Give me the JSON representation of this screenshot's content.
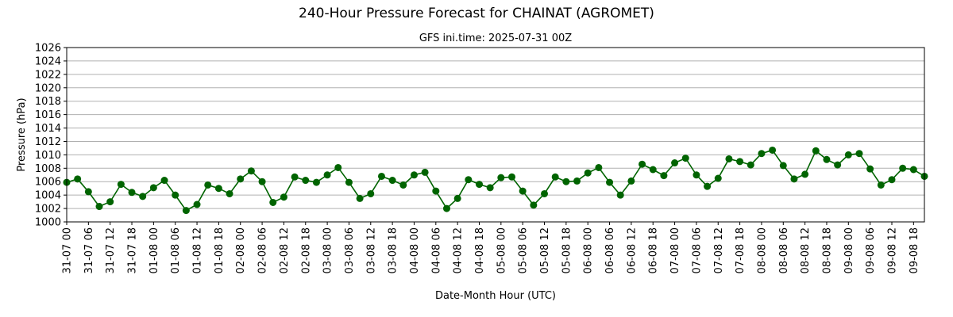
{
  "chart_data": {
    "type": "line",
    "title": "240-Hour Pressure Forecast for CHAINAT (AGROMET)",
    "subtitle": "GFS ini.time: 2025-07-31 00Z",
    "xlabel": "Date-Month Hour (UTC)",
    "ylabel": "Pressure (hPa)",
    "ylim": [
      1000,
      1026
    ],
    "yticks": [
      1000,
      1002,
      1004,
      1006,
      1008,
      1010,
      1012,
      1014,
      1016,
      1018,
      1020,
      1022,
      1024,
      1026
    ],
    "xticklabels": [
      "31-07 00",
      "31-07 06",
      "31-07 12",
      "31-07 18",
      "01-08 00",
      "01-08 06",
      "01-08 12",
      "01-08 18",
      "02-08 00",
      "02-08 06",
      "02-08 12",
      "02-08 18",
      "03-08 00",
      "03-08 06",
      "03-08 12",
      "03-08 18",
      "04-08 00",
      "04-08 06",
      "04-08 12",
      "04-08 18",
      "05-08 00",
      "05-08 06",
      "05-08 12",
      "05-08 18",
      "06-08 00",
      "06-08 06",
      "06-08 12",
      "06-08 18",
      "07-08 00",
      "07-08 06",
      "07-08 12",
      "07-08 18",
      "08-08 00",
      "08-08 06",
      "08-08 12",
      "08-08 18",
      "09-08 00",
      "09-08 06",
      "09-08 12",
      "09-08 18"
    ],
    "x_step_hours": 3,
    "grid": "y",
    "colors": {
      "series": "#006400",
      "grid": "#b0b0b0"
    },
    "series": [
      {
        "values": [
          1005.9,
          1006.4,
          1004.5,
          1002.3,
          1003.0,
          1005.6,
          1004.4,
          1003.8,
          1005.1,
          1006.2,
          1004.0,
          1001.7,
          1002.6,
          1005.5,
          1005.0,
          1004.2,
          1006.4,
          1007.6,
          1006.0,
          1002.9,
          1003.7,
          1006.7,
          1006.2,
          1005.9,
          1007.0,
          1008.1,
          1005.9,
          1003.5,
          1004.2,
          1006.8,
          1006.2,
          1005.5,
          1007.0,
          1007.4,
          1004.6,
          1002.0,
          1003.5,
          1006.3,
          1005.6,
          1005.1,
          1006.6,
          1006.7,
          1004.6,
          1002.5,
          1004.2,
          1006.7,
          1006.0,
          1006.1,
          1007.3,
          1008.1,
          1005.9,
          1004.0,
          1006.1,
          1008.6,
          1007.8,
          1006.9,
          1008.8,
          1009.5,
          1007.0,
          1005.3,
          1006.5,
          1009.4,
          1009.0,
          1008.5,
          1010.2,
          1010.7,
          1008.4,
          1006.4,
          1007.1,
          1010.6,
          1009.3,
          1008.5,
          1010.0,
          1010.2,
          1007.9,
          1005.5,
          1006.3,
          1008.0,
          1007.8,
          1006.8
        ]
      }
    ]
  }
}
